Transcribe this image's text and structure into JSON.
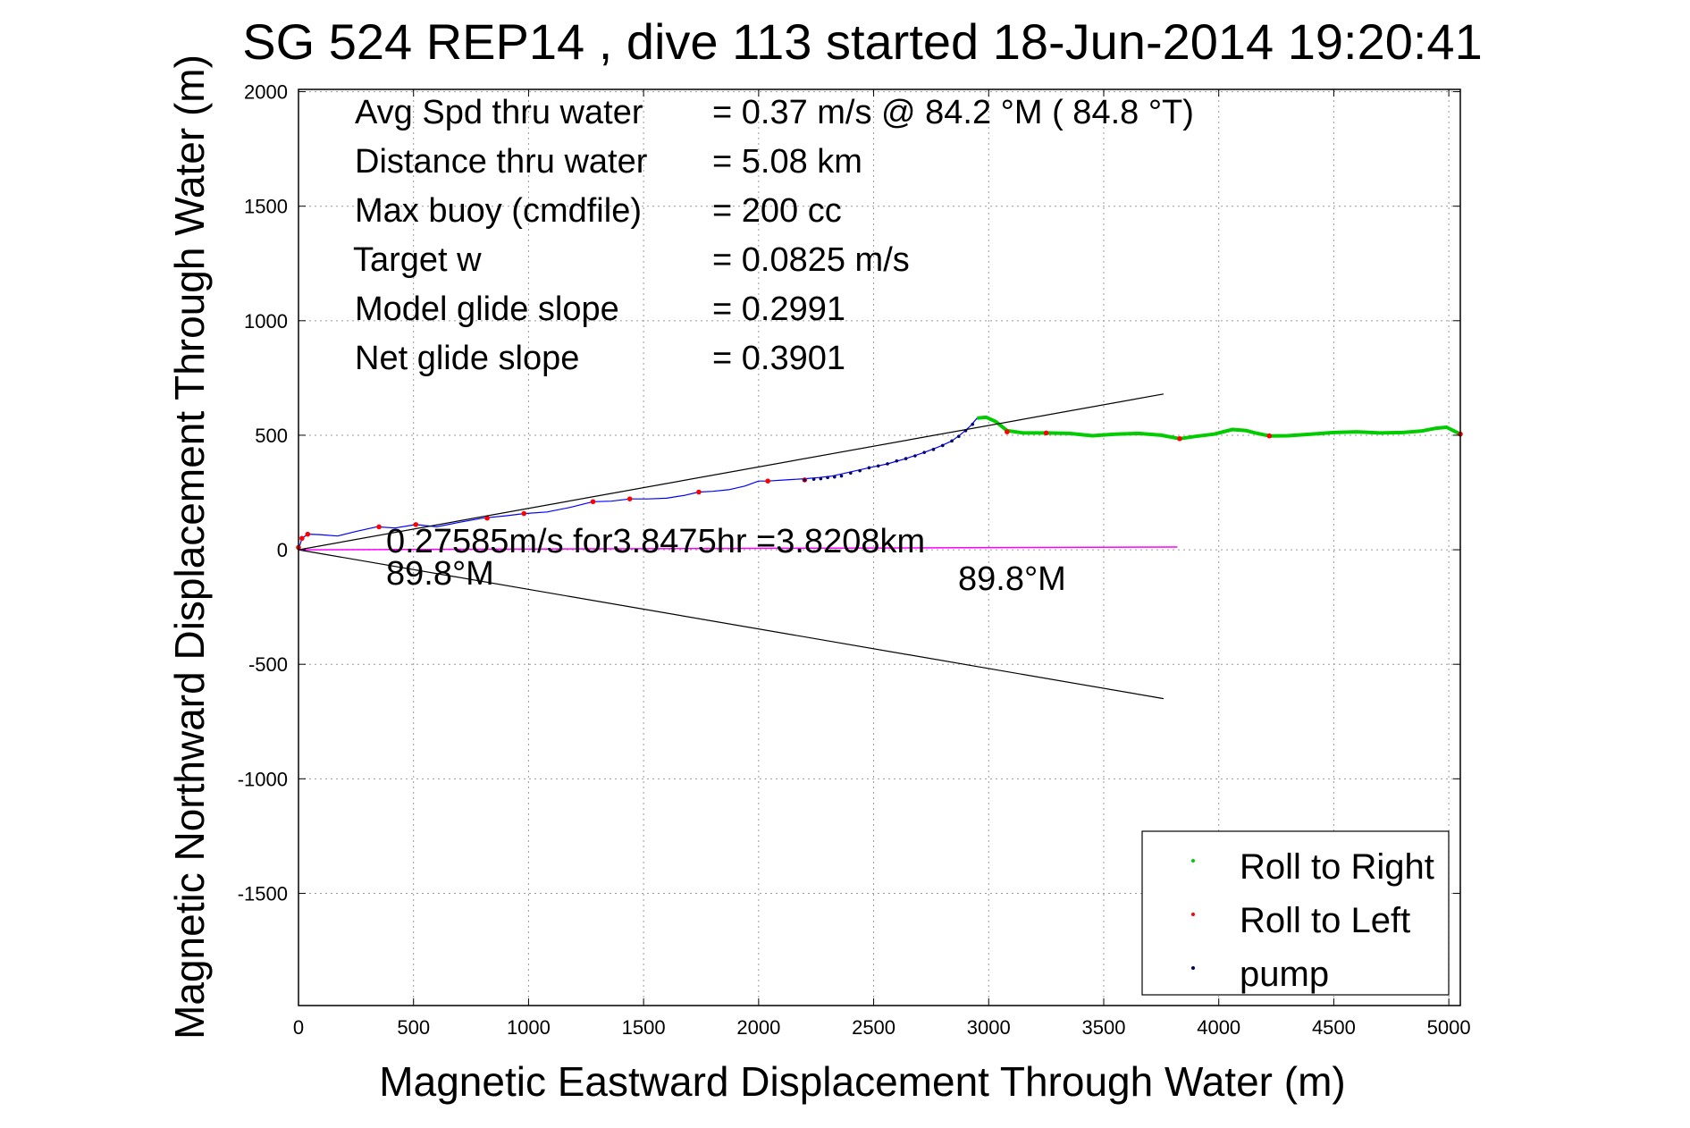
{
  "chart_data": {
    "type": "line",
    "title": "SG 524   REP14  , dive 113 started 18-Jun-2014 19:20:41",
    "xlabel": "Magnetic Eastward Displacement Through Water (m)",
    "ylabel": "Magnetic Northward Displacement Through Water (m)",
    "xlim": [
      0,
      5050
    ],
    "ylim": [
      -1990,
      2010
    ],
    "grid": true,
    "legend_position": "bottom-right",
    "x_ticks": [
      0,
      500,
      1000,
      1500,
      2000,
      2500,
      3000,
      3500,
      4000,
      4500,
      5000
    ],
    "y_ticks": [
      2000,
      1500,
      1000,
      500,
      0,
      -500,
      -1000,
      -1500
    ],
    "stats": [
      {
        "label": "Avg Spd thru water",
        "value": "=  0.37 m/s @  84.2 °M ( 84.8 °T)"
      },
      {
        "label": "Distance thru water",
        "value": "=  5.08 km"
      },
      {
        "label": "Max buoy (cmdfile)",
        "value": "= 200 cc"
      },
      {
        "label": "Target w",
        "value": "= 0.0825 m/s"
      },
      {
        "label": "Model glide slope",
        "value": "= 0.2991"
      },
      {
        "label": "Net glide slope",
        "value": "= 0.3901"
      }
    ],
    "current_annotation": {
      "line1": "0.27585m/s for3.8475hr =3.8208km",
      "line2": "89.8°M",
      "end_label": "89.8°M"
    },
    "series": [
      {
        "name": "track",
        "color": "#0000ff",
        "x": [
          0,
          15,
          40,
          90,
          170,
          250,
          340,
          420,
          510,
          600,
          700,
          800,
          900,
          980,
          1080,
          1180,
          1280,
          1360,
          1440,
          1520,
          1600,
          1680,
          1740,
          1800,
          1870,
          1940,
          2000,
          2040,
          2120,
          2200,
          2260,
          2320,
          2400,
          2480,
          2560,
          2640,
          2720,
          2790,
          2840,
          2880,
          2920,
          2950
        ],
        "y": [
          0,
          50,
          68,
          66,
          60,
          80,
          100,
          95,
          110,
          100,
          120,
          138,
          148,
          158,
          165,
          185,
          210,
          212,
          222,
          222,
          225,
          238,
          252,
          255,
          262,
          278,
          300,
          300,
          305,
          310,
          315,
          322,
          340,
          358,
          375,
          398,
          425,
          452,
          475,
          505,
          540,
          575
        ]
      },
      {
        "name": "Roll to Right",
        "color": "#00cc00",
        "x": [
          2950,
          2990,
          3030,
          3080,
          3150,
          3250,
          3350,
          3450,
          3550,
          3650,
          3750,
          3830,
          3900,
          3980,
          4060,
          4120,
          4160,
          4220,
          4300,
          4400,
          4500,
          4600,
          4700,
          4800,
          4880,
          4940,
          4990,
          5020,
          5050
        ],
        "y": [
          575,
          578,
          560,
          520,
          510,
          510,
          508,
          498,
          505,
          508,
          500,
          485,
          495,
          505,
          525,
          520,
          510,
          497,
          498,
          505,
          512,
          515,
          510,
          512,
          518,
          530,
          535,
          520,
          505
        ]
      },
      {
        "name": "Roll to Left",
        "color": "#ff0000",
        "x": [
          0,
          15,
          40,
          350,
          510,
          820,
          980,
          1280,
          1440,
          1740,
          2040,
          2200,
          3080,
          3250,
          3830,
          4220,
          5050
        ],
        "y": [
          10,
          50,
          68,
          100,
          110,
          138,
          158,
          210,
          222,
          252,
          300,
          305,
          515,
          510,
          485,
          497,
          505
        ]
      },
      {
        "name": "pump",
        "color": "#000066",
        "x": [
          2200,
          2240,
          2270,
          2300,
          2330,
          2360,
          2400,
          2440,
          2480,
          2520,
          2560,
          2600,
          2640,
          2680,
          2720,
          2760,
          2800,
          2840,
          2870,
          2900,
          2930
        ],
        "y": [
          305,
          308,
          310,
          315,
          318,
          322,
          335,
          345,
          358,
          366,
          375,
          388,
          398,
          410,
          425,
          438,
          455,
          475,
          495,
          520,
          548
        ]
      },
      {
        "name": "glide slope upper",
        "color": "#000000",
        "x": [
          0,
          3760
        ],
        "y": [
          0,
          680
        ]
      },
      {
        "name": "glide slope lower",
        "color": "#000000",
        "x": [
          0,
          3760
        ],
        "y": [
          0,
          -650
        ]
      },
      {
        "name": "current",
        "color": "#ff00ff",
        "x": [
          0,
          3820
        ],
        "y": [
          0,
          12
        ]
      }
    ],
    "legend": [
      {
        "label": "Roll to Right",
        "color": "#00cc00"
      },
      {
        "label": "Roll to Left",
        "color": "#ff0000"
      },
      {
        "label": "pump",
        "color": "#000066"
      }
    ]
  }
}
